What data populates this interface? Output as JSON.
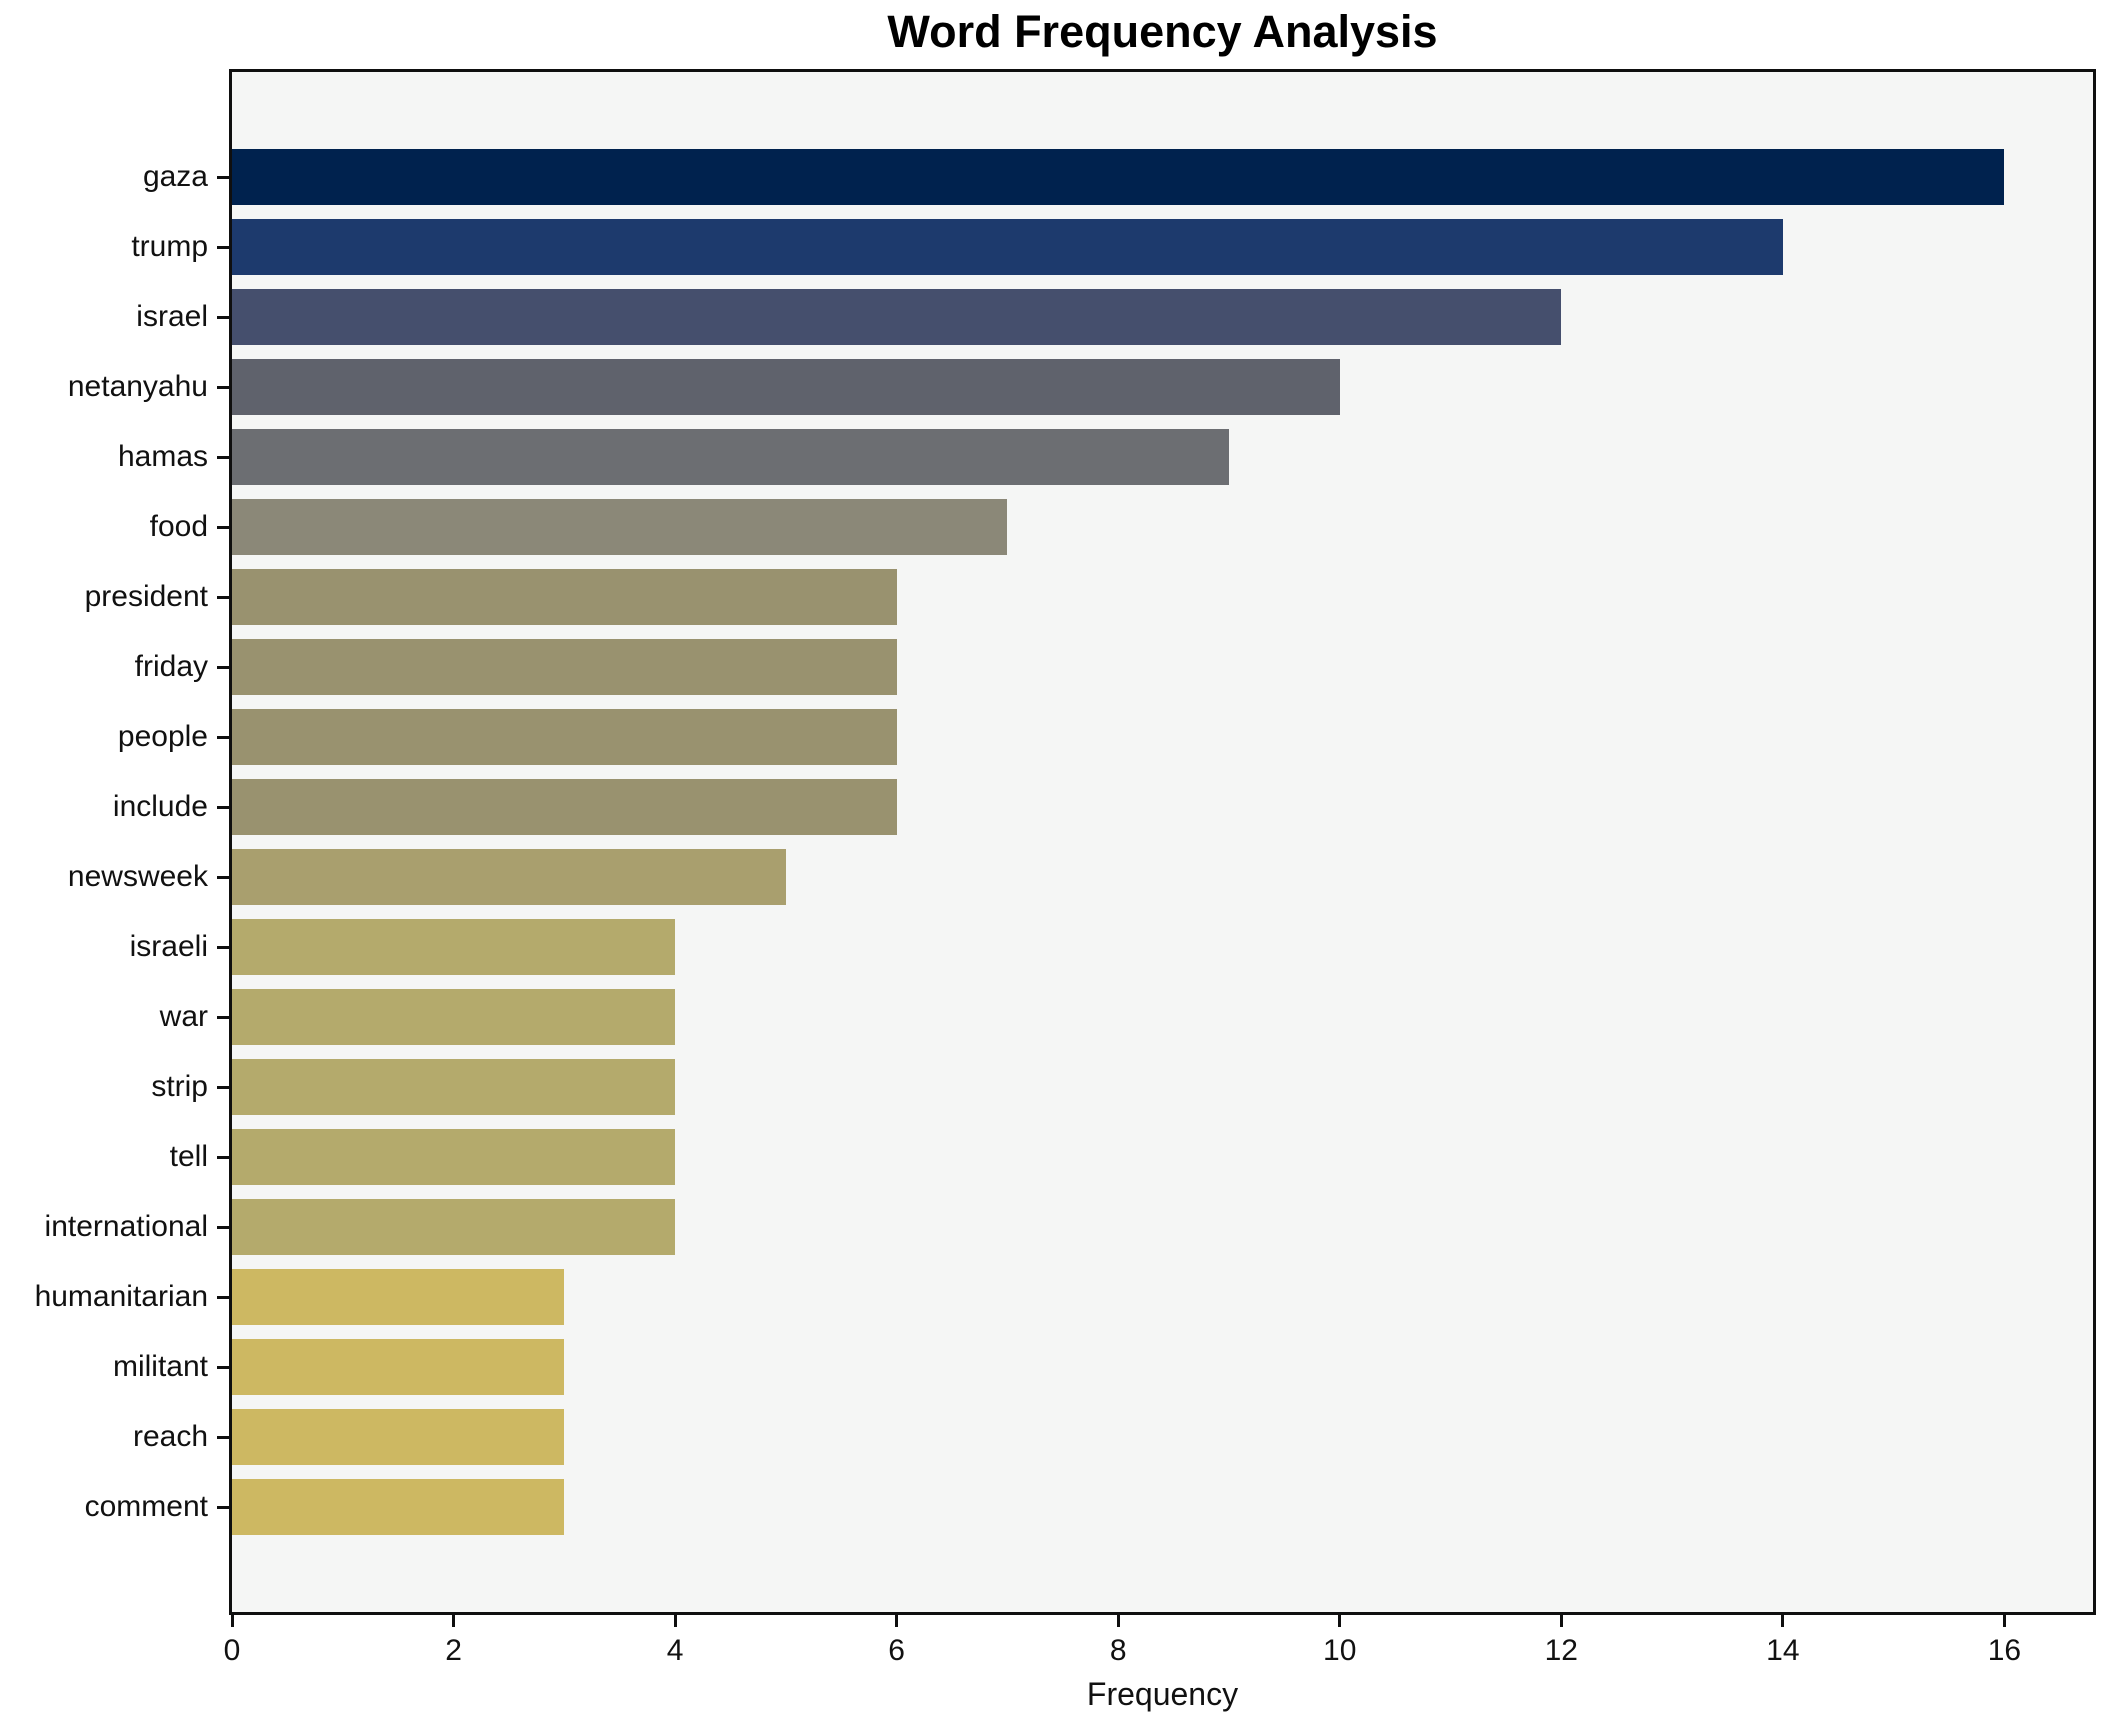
{
  "chart_data": {
    "type": "bar",
    "orientation": "horizontal",
    "title": "Word Frequency Analysis",
    "xlabel": "Frequency",
    "ylabel": "",
    "categories": [
      "gaza",
      "trump",
      "israel",
      "netanyahu",
      "hamas",
      "food",
      "president",
      "friday",
      "people",
      "include",
      "newsweek",
      "israeli",
      "war",
      "strip",
      "tell",
      "international",
      "humanitarian",
      "militant",
      "reach",
      "comment"
    ],
    "values": [
      16,
      14,
      12,
      10,
      9,
      7,
      6,
      6,
      6,
      6,
      5,
      4,
      4,
      4,
      4,
      4,
      3,
      3,
      3,
      3
    ],
    "bar_colors": [
      "#00224e",
      "#1d3a6d",
      "#454f6d",
      "#5f626c",
      "#6c6e72",
      "#8b8878",
      "#99926f",
      "#99926f",
      "#99926f",
      "#99926f",
      "#a99f6e",
      "#b4aa6c",
      "#b4aa6c",
      "#b4aa6c",
      "#b4aa6c",
      "#b4aa6c",
      "#cdb862",
      "#cdb862",
      "#cdb862",
      "#cdb862"
    ],
    "xlim": [
      0,
      16.8
    ],
    "xticks": [
      0,
      2,
      4,
      6,
      8,
      10,
      12,
      14,
      16
    ],
    "grid": false,
    "legend_position": "none",
    "bar_height_fraction": 0.8,
    "colors": {
      "plot_background": "#f5f6f5",
      "figure_background": "#ffffff",
      "axis_spine": "#0f0f0f",
      "text": "#111111"
    }
  }
}
